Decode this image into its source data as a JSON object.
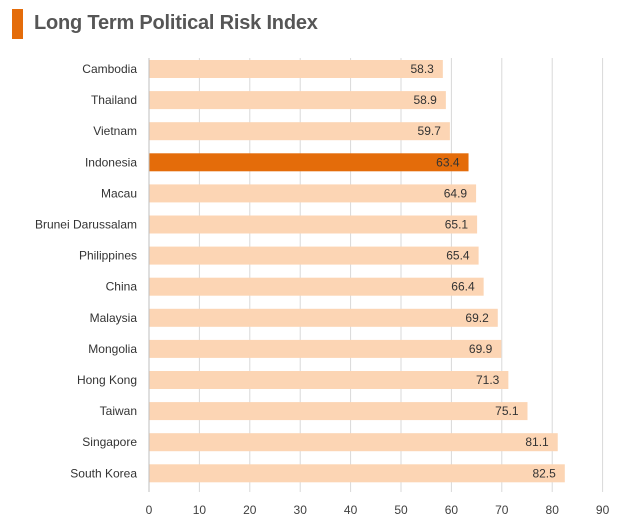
{
  "title": "Long Term Political Risk Index",
  "colors": {
    "title_bar": "#e46c0a",
    "bar": "#fcd5b4",
    "highlight": "#e46c0a",
    "highlight_text": "#ffffff",
    "gridline": "#d9d9d9"
  },
  "chart_data": {
    "type": "bar",
    "orientation": "horizontal",
    "title": "Long Term Political Risk Index",
    "categories": [
      "Cambodia",
      "Thailand",
      "Vietnam",
      "Indonesia",
      "Macau",
      "Brunei Darussalam",
      "Philippines",
      "China",
      "Malaysia",
      "Mongolia",
      "Hong Kong",
      "Taiwan",
      "Singapore",
      "South Korea"
    ],
    "values": [
      58.3,
      58.9,
      59.7,
      63.4,
      64.9,
      65.1,
      65.4,
      66.4,
      69.2,
      69.9,
      71.3,
      75.1,
      81.1,
      82.5
    ],
    "value_labels": [
      "58.3",
      "58.9",
      "59.7",
      "63.4",
      "64.9",
      "65.1",
      "65.4",
      "66.4",
      "69.2",
      "69.9",
      "71.3",
      "75.1",
      "81.1",
      "82.5"
    ],
    "highlight": "Indonesia",
    "xlim": [
      0,
      90
    ],
    "xticks": [
      "0",
      "10",
      "20",
      "30",
      "40",
      "50",
      "60",
      "70",
      "80",
      "90"
    ],
    "grid": "vertical",
    "legend": "none"
  }
}
